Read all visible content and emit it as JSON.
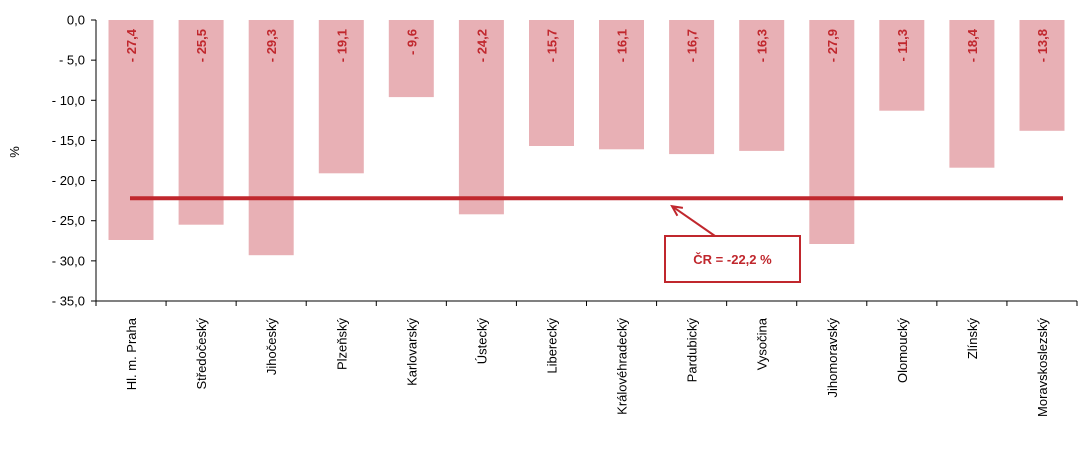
{
  "chart_data": {
    "type": "bar",
    "title": "",
    "ylabel": "%",
    "xlabel": "",
    "ylim": [
      -35,
      0
    ],
    "y_ticks": [
      "0,0",
      "- 5,0",
      "- 10,0",
      "- 15,0",
      "- 20,0",
      "- 25,0",
      "- 30,0",
      "- 35,0"
    ],
    "categories": [
      "Hl. m. Praha",
      "Středočeský",
      "Jihočeský",
      "Plzeňský",
      "Karlovarský",
      "Ústecký",
      "Liberecký",
      "Královéhradecký",
      "Pardubický",
      "Vysočina",
      "Jihomoravský",
      "Olomoucký",
      "Zlínský",
      "Moravskoslezský"
    ],
    "values": [
      -27.4,
      -25.5,
      -29.3,
      -19.1,
      -9.6,
      -24.2,
      -15.7,
      -16.1,
      -16.7,
      -16.3,
      -27.9,
      -11.3,
      -18.4,
      -13.8
    ],
    "data_labels": [
      "- 27,4",
      "- 25,5",
      "- 29,3",
      "- 19,1",
      "- 9,6",
      "- 24,2",
      "- 15,7",
      "- 16,1",
      "- 16,7",
      "- 16,3",
      "- 27,9",
      "- 11,3",
      "- 18,4",
      "- 13,8"
    ],
    "reference_line": {
      "value": -22.2,
      "label": "ČR = -22,2 %"
    },
    "grid": false,
    "legend": "none",
    "colors": {
      "bar": "#e8b0b5",
      "line": "#c0272d",
      "label": "#c0272d",
      "axis": "#000000"
    }
  }
}
